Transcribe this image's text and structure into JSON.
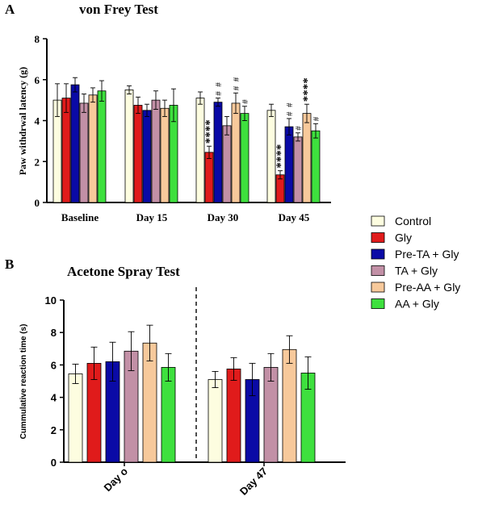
{
  "panels": {
    "a": {
      "letter": "A",
      "title": "von Frey Test"
    },
    "b": {
      "letter": "B",
      "title": "Acetone Spray Test"
    }
  },
  "colors": {
    "control": "#fdfde0",
    "gly": "#e01b1b",
    "pre_ta_gly": "#0a0aa6",
    "ta_gly": "#c290a6",
    "pre_aa_gly": "#f7c99b",
    "aa_gly": "#3ee03e",
    "axis": "#000000"
  },
  "legend": {
    "position": "right",
    "entries": [
      "Control",
      "Gly",
      "Pre-TA + Gly",
      "TA + Gly",
      "Pre-AA + Gly",
      "AA + Gly"
    ]
  },
  "chart_data": [
    {
      "type": "bar",
      "title": "von Frey Test",
      "ylabel": "Paw withdrwal latency (g)",
      "xlabel": "",
      "ylim": [
        0,
        8
      ],
      "yticks": [
        "0",
        "2",
        "4",
        "6",
        "8"
      ],
      "grid": false,
      "categories": [
        "Baseline",
        "Day 15",
        "Day 30",
        "Day 45"
      ],
      "series": [
        {
          "name": "Control",
          "values": [
            5.0,
            5.5,
            5.1,
            4.5
          ],
          "errors": [
            0.8,
            0.2,
            0.3,
            0.3
          ]
        },
        {
          "name": "Gly",
          "values": [
            5.1,
            4.75,
            2.45,
            1.35
          ],
          "errors": [
            0.7,
            0.4,
            0.3,
            0.2
          ]
        },
        {
          "name": "Pre-TA + Gly",
          "values": [
            5.75,
            4.5,
            4.9,
            3.7
          ],
          "errors": [
            0.35,
            0.3,
            0.2,
            0.4
          ]
        },
        {
          "name": "TA + Gly",
          "values": [
            4.85,
            5.0,
            3.75,
            3.2
          ],
          "errors": [
            0.45,
            0.45,
            0.45,
            0.2
          ]
        },
        {
          "name": "Pre-AA + Gly",
          "values": [
            5.25,
            4.6,
            4.85,
            4.35
          ],
          "errors": [
            0.35,
            0.4,
            0.5,
            0.45
          ]
        },
        {
          "name": "AA + Gly",
          "values": [
            5.45,
            4.75,
            4.35,
            3.5
          ],
          "errors": [
            0.5,
            0.8,
            0.35,
            0.35
          ]
        }
      ],
      "annotations": [
        {
          "text": "****",
          "category": "Day 30",
          "series": "Gly"
        },
        {
          "text": "#",
          "category": "Day 30",
          "series": "Pre-TA + Gly"
        },
        {
          "text": "#",
          "category": "Day 30",
          "series": "Pre-TA + Gly"
        },
        {
          "text": "#",
          "category": "Day 30",
          "series": "Pre-AA + Gly"
        },
        {
          "text": "#",
          "category": "Day 30",
          "series": "Pre-AA + Gly"
        },
        {
          "text": "#",
          "category": "Day 30",
          "series": "AA + Gly"
        },
        {
          "text": "****",
          "category": "Day 45",
          "series": "Gly"
        },
        {
          "text": "#",
          "category": "Day 45",
          "series": "Pre-TA + Gly"
        },
        {
          "text": "#",
          "category": "Day 45",
          "series": "Pre-TA + Gly"
        },
        {
          "text": "#",
          "category": "Day 45",
          "series": "TA + Gly"
        },
        {
          "text": "****",
          "category": "Day 45",
          "series": "Pre-AA + Gly"
        },
        {
          "text": "#",
          "category": "Day 45",
          "series": "AA + Gly"
        }
      ]
    },
    {
      "type": "bar",
      "title": "Acetone Spray Test",
      "ylabel": "Cummulative reaction time (s)",
      "xlabel": "",
      "ylim": [
        0,
        10
      ],
      "yticks": [
        "0",
        "2",
        "4",
        "6",
        "8",
        "10"
      ],
      "grid": false,
      "categories": [
        "Day o",
        "Day 47"
      ],
      "series": [
        {
          "name": "Control",
          "values": [
            5.45,
            5.1
          ],
          "errors": [
            0.6,
            0.5
          ]
        },
        {
          "name": "Gly",
          "values": [
            6.1,
            5.75
          ],
          "errors": [
            1.0,
            0.7
          ]
        },
        {
          "name": "Pre-TA + Gly",
          "values": [
            6.2,
            5.1
          ],
          "errors": [
            1.2,
            1.0
          ]
        },
        {
          "name": "TA + Gly",
          "values": [
            6.85,
            5.85
          ],
          "errors": [
            1.2,
            0.85
          ]
        },
        {
          "name": "Pre-AA + Gly",
          "values": [
            7.35,
            6.95
          ],
          "errors": [
            1.1,
            0.85
          ]
        },
        {
          "name": "AA + Gly",
          "values": [
            5.85,
            5.5
          ],
          "errors": [
            0.85,
            1.0
          ]
        }
      ]
    }
  ]
}
